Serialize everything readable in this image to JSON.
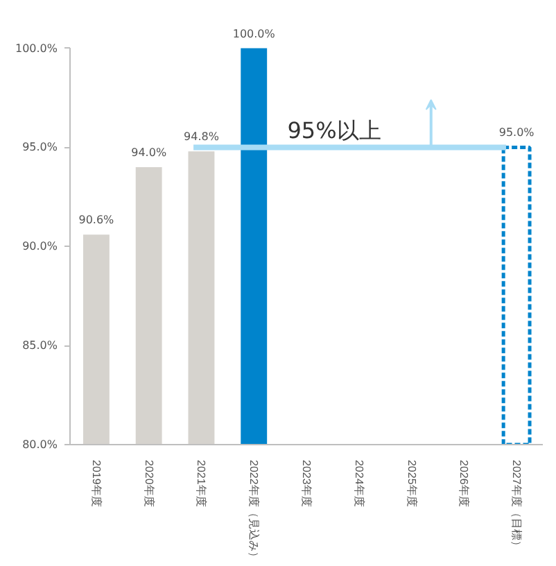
{
  "chart_data": {
    "type": "bar",
    "categories": [
      "2019年度",
      "2020年度",
      "2021年度",
      "2022年度（見込み）",
      "2023年度",
      "2024年度",
      "2025年度",
      "2026年度",
      "2027年度（目標）"
    ],
    "series": [
      {
        "color": "#d6d3ce",
        "values": [
          90.6,
          94.0,
          94.8,
          null,
          null,
          null,
          null,
          null,
          null
        ]
      },
      {
        "color": "#0084cc",
        "values": [
          null,
          null,
          null,
          100.0,
          null,
          null,
          null,
          null,
          null
        ]
      },
      {
        "color": "#0084cc",
        "line_style": "dashed",
        "values": [
          null,
          null,
          null,
          null,
          null,
          null,
          null,
          null,
          95.0
        ]
      }
    ],
    "ylim": [
      80,
      100
    ],
    "yticks": [
      {
        "value": 80,
        "label": "80.0%"
      },
      {
        "value": 85,
        "label": "85.0%"
      },
      {
        "value": 90,
        "label": "90.0%"
      },
      {
        "value": 95,
        "label": "95.0%"
      },
      {
        "value": 100,
        "label": "100.0%"
      }
    ],
    "value_labels": [
      "90.6%",
      "94.0%",
      "94.8%",
      "100.0%",
      null,
      null,
      null,
      null,
      "95.0%"
    ],
    "ref_lines": [
      {
        "axis": "y",
        "value": 95,
        "label": "95%以上",
        "color": "#a8dcf5"
      }
    ],
    "grid": false
  }
}
